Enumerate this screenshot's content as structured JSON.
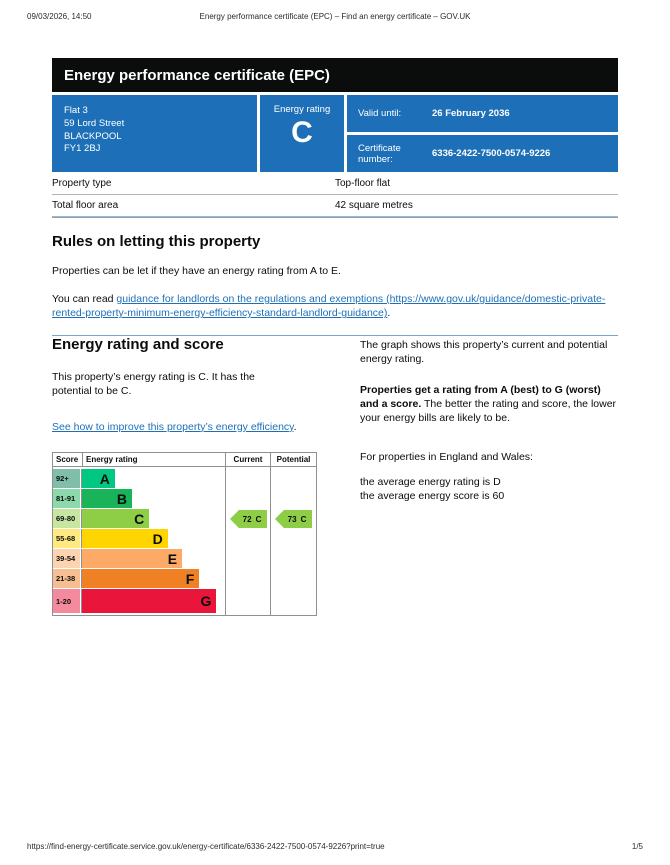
{
  "meta": {
    "datetime": "09/03/2026, 14:50",
    "doc_title": "Energy performance certificate (EPC) – Find an energy certificate – GOV.UK",
    "footer_url": "https://find-energy-certificate.service.gov.uk/energy-certificate/6336-2422-7500-0574-9226?print=true",
    "page_indicator": "1/5"
  },
  "colors": {
    "brand_blue": "#1d70b8",
    "banner_black": "#0b0c0c",
    "link_blue": "#1d70b8",
    "divider_blue": "#76a5cd"
  },
  "banner": {
    "title": "Energy performance certificate (EPC)"
  },
  "summary": {
    "address_line1": "Flat 3",
    "address_line2": "59 Lord Street",
    "address_line3": "BLACKPOOL",
    "address_line4": "FY1 2BJ",
    "energy_rating_label": "Energy rating",
    "energy_rating": "C",
    "valid_until_label": "Valid until:",
    "valid_until": "26 February 2036",
    "certificate_number_label": "Certificate number:",
    "certificate_number": "6336-2422-7500-0574-9226"
  },
  "property_table": {
    "rows": [
      {
        "label": "Property type",
        "value": "Top-floor flat"
      },
      {
        "label": "Total floor area",
        "value": "42 square metres"
      }
    ]
  },
  "letting": {
    "heading": "Rules on letting this property",
    "p1": "Properties can be let if they have an energy rating from A to E.",
    "p2_prefix": "You can read ",
    "link_text": "guidance for landlords on the regulations and exemptions (https://www.gov.uk/guidance/domestic-private-rented-property-minimum-energy-efficiency-standard-landlord-guidance)",
    "p2_suffix": "."
  },
  "rating_section": {
    "heading": "Energy rating and score",
    "p1": "This property’s energy rating is C. It has the potential to be C.",
    "improve_link_text": "See how to improve this property’s energy efficiency",
    "improve_link_suffix": ".",
    "right": {
      "p1": "The graph shows this property’s current and potential energy rating.",
      "p2_bold": "Properties get a rating from A (best) to G (worst) and a score.",
      "p2_rest": " The better the rating and score, the lower your energy bills are likely to be.",
      "p3": "For properties in England and Wales:",
      "avg_rating_line": "the average energy rating is D",
      "avg_score_line": "the average energy score is 60"
    }
  },
  "chart_data": {
    "type": "epc-band-chart",
    "headers": [
      "Score",
      "Energy rating",
      "Current",
      "Potential"
    ],
    "bands": [
      {
        "score": "92+",
        "letter": "A",
        "width_pct": 23,
        "color": "#00c781",
        "score_color": "#7fbfa9"
      },
      {
        "score": "81-91",
        "letter": "B",
        "width_pct": 35,
        "color": "#19b459",
        "score_color": "#8cd9ac"
      },
      {
        "score": "69-80",
        "letter": "C",
        "width_pct": 47,
        "color": "#8dce46",
        "score_color": "#c6e6a2"
      },
      {
        "score": "55-68",
        "letter": "D",
        "width_pct": 60,
        "color": "#ffd500",
        "score_color": "#ffea80"
      },
      {
        "score": "39-54",
        "letter": "E",
        "width_pct": 70,
        "color": "#fcaa65",
        "score_color": "#fdd4b2"
      },
      {
        "score": "21-38",
        "letter": "F",
        "width_pct": 82,
        "color": "#ef8023",
        "score_color": "#f7bf91"
      },
      {
        "score": "1-20",
        "letter": "G",
        "width_pct": 94,
        "color": "#e9153b",
        "score_color": "#f48a9d"
      }
    ],
    "current": {
      "value": 72,
      "score": "72",
      "band": "C",
      "color": "#8dce46"
    },
    "potential": {
      "value": 73,
      "score": "73",
      "band": "C",
      "color": "#8dce46"
    }
  }
}
